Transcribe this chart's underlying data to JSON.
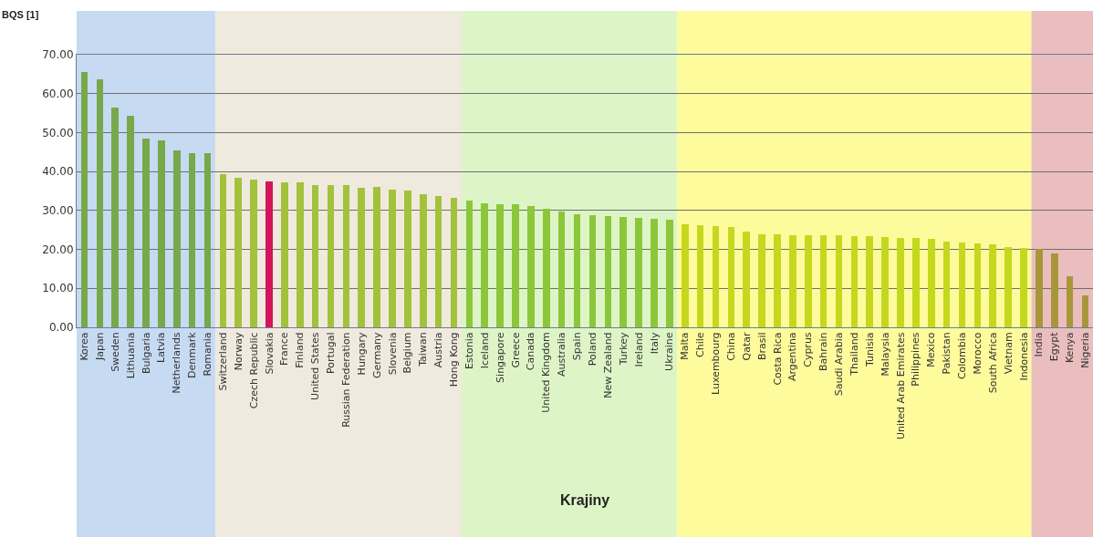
{
  "chart_data": {
    "type": "bar",
    "xlabel": "Krajiny",
    "ylabel": "BQS [1]",
    "categories": [
      "Korea",
      "Japan",
      "Sweden",
      "Lithuania",
      "Bulgaria",
      "Latvia",
      "Netherlands",
      "Denmark",
      "Romania",
      "Switzerland",
      "Norway",
      "Czech Republic",
      "Slovakia",
      "France",
      "Finland",
      "United States",
      "Portugal",
      "Russian Federation",
      "Hungary",
      "Germany",
      "Slovenia",
      "Belgium",
      "Taiwan",
      "Austria",
      "Hong Kong",
      "Estonia",
      "Iceland",
      "Singapore",
      "Greece",
      "Canada",
      "United Kingdom",
      "Australia",
      "Spain",
      "Poland",
      "New Zealand",
      "Turkey",
      "Ireland",
      "Italy",
      "Ukraine",
      "Malta",
      "Chile",
      "Luxembourg",
      "China",
      "Qatar",
      "Brasil",
      "Costa Rica",
      "Argentina",
      "Cyprus",
      "Bahrain",
      "Saudi Arabia",
      "Thailand",
      "Tunisia",
      "Malaysia",
      "United Arab Emirates",
      "Philippines",
      "Mexico",
      "Pakistan",
      "Colombia",
      "Morocco",
      "South Africa",
      "Vietnam",
      "Indonesia",
      "India",
      "Egypt",
      "Kenya",
      "Nigeria"
    ],
    "values": [
      65.6,
      63.7,
      56.5,
      54.3,
      48.4,
      48.0,
      45.5,
      44.8,
      44.8,
      39.4,
      38.3,
      37.9,
      37.4,
      37.3,
      37.3,
      36.6,
      36.5,
      36.5,
      35.8,
      36.0,
      35.3,
      35.2,
      34.2,
      33.8,
      33.3,
      32.5,
      31.9,
      31.6,
      31.6,
      31.2,
      30.5,
      29.7,
      29.1,
      28.7,
      28.6,
      28.4,
      28.0,
      27.9,
      27.7,
      26.4,
      26.3,
      26.1,
      25.7,
      24.7,
      23.9,
      23.8,
      23.6,
      23.6,
      23.6,
      23.6,
      23.4,
      23.3,
      23.1,
      23.0,
      22.9,
      22.8,
      22.0,
      21.7,
      21.6,
      21.3,
      20.7,
      20.3,
      20.1,
      18.9,
      13.0,
      8.3
    ],
    "colors": [
      "#77a94a",
      "#77a94a",
      "#77a94a",
      "#77a94a",
      "#77a94a",
      "#77a94a",
      "#77a94a",
      "#77a94a",
      "#77a94a",
      "#a3c23c",
      "#a3c23c",
      "#a3c23c",
      "#d4145a",
      "#a3c23c",
      "#a3c23c",
      "#a3c23c",
      "#a3c23c",
      "#a3c23c",
      "#a3c23c",
      "#a3c23c",
      "#a3c23c",
      "#a3c23c",
      "#a3c23c",
      "#a3c23c",
      "#a3c23c",
      "#8cc63a",
      "#8cc63a",
      "#8cc63a",
      "#8cc63a",
      "#8cc63a",
      "#8cc63a",
      "#8cc63a",
      "#8cc63a",
      "#8cc63a",
      "#8cc63a",
      "#8cc63a",
      "#8cc63a",
      "#8cc63a",
      "#8cc63a",
      "#c5d81e",
      "#c5d81e",
      "#c5d81e",
      "#c5d81e",
      "#c5d81e",
      "#c5d81e",
      "#c5d81e",
      "#c5d81e",
      "#c5d81e",
      "#c5d81e",
      "#c5d81e",
      "#c5d81e",
      "#c5d81e",
      "#c5d81e",
      "#c5d81e",
      "#c5d81e",
      "#c5d81e",
      "#c5d81e",
      "#c5d81e",
      "#c5d81e",
      "#c5d81e",
      "#c5d81e",
      "#c5d81e",
      "#a8963a",
      "#a8963a",
      "#a8963a",
      "#a8963a"
    ],
    "ylim": [
      0,
      70
    ],
    "yticks": [
      {
        "value": 0,
        "label": "0.00"
      },
      {
        "value": 10,
        "label": "10.00"
      },
      {
        "value": 20,
        "label": "20.00"
      },
      {
        "value": 30,
        "label": "30.00"
      },
      {
        "value": 40,
        "label": "40.00"
      },
      {
        "value": 50,
        "label": "50.00"
      },
      {
        "value": 60,
        "label": "60.00"
      },
      {
        "value": 70,
        "label": "70.00"
      }
    ],
    "grid": "y",
    "bands": [
      {
        "axis": "x",
        "from": "Korea",
        "to": "Romania",
        "color": "#c6daf2"
      },
      {
        "axis": "x",
        "from": "Switzerland",
        "to": "Hong Kong",
        "color": "#efeadd"
      },
      {
        "axis": "x",
        "from": "Estonia",
        "to": "Ukraine",
        "color": "#ddf5c6"
      },
      {
        "axis": "x",
        "from": "Malta",
        "to": "Indonesia",
        "color": "#fdfb9c"
      },
      {
        "axis": "x",
        "from": "India",
        "to": "Nigeria",
        "color": "#eabebe"
      }
    ]
  }
}
